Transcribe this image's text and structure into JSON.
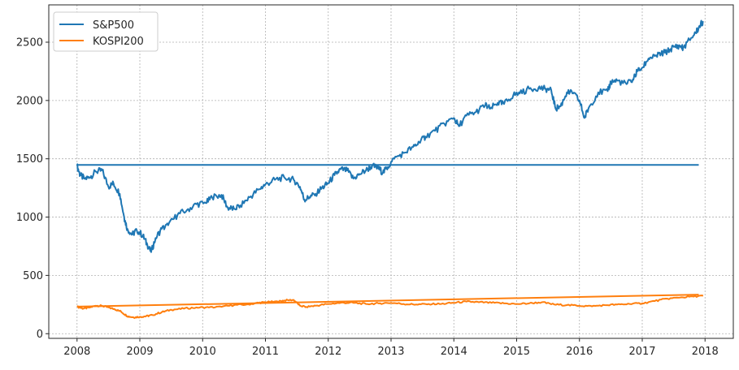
{
  "chart_data": {
    "type": "line",
    "title": "",
    "xlabel": "",
    "ylabel": "",
    "xlim": [
      2007.55,
      2018.45
    ],
    "ylim": [
      -40,
      2820
    ],
    "grid": true,
    "legend_position": "top-left",
    "x_ticks": [
      2008,
      2009,
      2010,
      2011,
      2012,
      2013,
      2014,
      2015,
      2016,
      2017,
      2018
    ],
    "x_tick_labels": [
      "2008",
      "2009",
      "2010",
      "2011",
      "2012",
      "2013",
      "2014",
      "2015",
      "2016",
      "2017",
      "2018"
    ],
    "y_ticks": [
      0,
      500,
      1000,
      1500,
      2000,
      2500
    ],
    "y_tick_labels": [
      "0",
      "500",
      "1000",
      "1500",
      "2000",
      "2500"
    ],
    "series": [
      {
        "name": "S&P500",
        "color": "#1f77b4",
        "x": [
          2008.0,
          2008.05,
          2008.12,
          2008.2,
          2008.3,
          2008.4,
          2008.5,
          2008.58,
          2008.68,
          2008.75,
          2008.8,
          2008.88,
          2008.95,
          2009.05,
          2009.12,
          2009.18,
          2009.25,
          2009.35,
          2009.45,
          2009.6,
          2009.75,
          2009.9,
          2010.05,
          2010.15,
          2010.3,
          2010.4,
          2010.5,
          2010.6,
          2010.75,
          2010.9,
          2011.0,
          2011.15,
          2011.3,
          2011.45,
          2011.55,
          2011.62,
          2011.7,
          2011.8,
          2011.9,
          2012.0,
          2012.1,
          2012.2,
          2012.3,
          2012.4,
          2012.5,
          2012.6,
          2012.7,
          2012.8,
          2012.87,
          2012.95,
          2013.05,
          2013.2,
          2013.35,
          2013.45,
          2013.55,
          2013.7,
          2013.85,
          2014.0,
          2014.08,
          2014.2,
          2014.35,
          2014.5,
          2014.58,
          2014.7,
          2014.8,
          2014.95,
          2015.05,
          2015.2,
          2015.35,
          2015.45,
          2015.55,
          2015.62,
          2015.7,
          2015.8,
          2015.9,
          2016.0,
          2016.08,
          2016.15,
          2016.3,
          2016.45,
          2016.5,
          2016.6,
          2016.75,
          2016.85,
          2016.92,
          2017.0,
          2017.1,
          2017.2,
          2017.3,
          2017.4,
          2017.5,
          2017.6,
          2017.65,
          2017.75,
          2017.85,
          2017.93,
          2017.97
        ],
        "values": [
          1440,
          1360,
          1330,
          1340,
          1390,
          1400,
          1260,
          1290,
          1200,
          1000,
          900,
          850,
          890,
          840,
          760,
          700,
          820,
          900,
          930,
          1020,
          1060,
          1110,
          1120,
          1170,
          1190,
          1080,
          1070,
          1100,
          1170,
          1240,
          1280,
          1320,
          1340,
          1320,
          1260,
          1150,
          1170,
          1200,
          1250,
          1290,
          1360,
          1410,
          1400,
          1330,
          1370,
          1400,
          1440,
          1420,
          1380,
          1430,
          1500,
          1550,
          1600,
          1640,
          1690,
          1740,
          1800,
          1850,
          1780,
          1870,
          1900,
          1960,
          1930,
          1980,
          1970,
          2050,
          2060,
          2100,
          2110,
          2100,
          2090,
          1930,
          1950,
          2070,
          2060,
          2000,
          1850,
          1940,
          2070,
          2080,
          2160,
          2170,
          2140,
          2180,
          2250,
          2280,
          2360,
          2380,
          2400,
          2420,
          2460,
          2470,
          2450,
          2520,
          2580,
          2650,
          2680
        ]
      },
      {
        "name": "KOSPI200",
        "color": "#ff7f0e",
        "x": [
          2008.0,
          2008.1,
          2008.2,
          2008.3,
          2008.4,
          2008.5,
          2008.6,
          2008.7,
          2008.8,
          2008.9,
          2009.0,
          2009.1,
          2009.2,
          2009.35,
          2009.5,
          2009.7,
          2009.9,
          2010.1,
          2010.3,
          2010.5,
          2010.7,
          2010.9,
          2011.0,
          2011.2,
          2011.3,
          2011.45,
          2011.55,
          2011.65,
          2011.8,
          2012.0,
          2012.2,
          2012.4,
          2012.6,
          2012.8,
          2013.0,
          2013.2,
          2013.4,
          2013.6,
          2013.8,
          2014.0,
          2014.2,
          2014.4,
          2014.6,
          2014.8,
          2015.0,
          2015.2,
          2015.4,
          2015.6,
          2015.8,
          2016.0,
          2016.2,
          2016.4,
          2016.6,
          2016.8,
          2017.0,
          2017.2,
          2017.4,
          2017.6,
          2017.8,
          2017.97
        ],
        "values": [
          232,
          215,
          225,
          240,
          238,
          225,
          210,
          190,
          150,
          140,
          145,
          150,
          160,
          185,
          205,
          215,
          225,
          225,
          230,
          245,
          250,
          265,
          270,
          275,
          285,
          290,
          240,
          230,
          240,
          255,
          265,
          265,
          255,
          260,
          265,
          255,
          250,
          255,
          255,
          265,
          275,
          270,
          265,
          260,
          255,
          260,
          270,
          250,
          245,
          240,
          235,
          245,
          250,
          255,
          260,
          280,
          300,
          310,
          320,
          325
        ]
      },
      {
        "name": "",
        "color": "#1f77b4",
        "x": [
          2008.0,
          2017.9
        ],
        "values": [
          1447,
          1447
        ]
      },
      {
        "name": "",
        "color": "#ff7f0e",
        "x": [
          2008.0,
          2017.9
        ],
        "values": [
          232,
          335
        ]
      }
    ]
  }
}
